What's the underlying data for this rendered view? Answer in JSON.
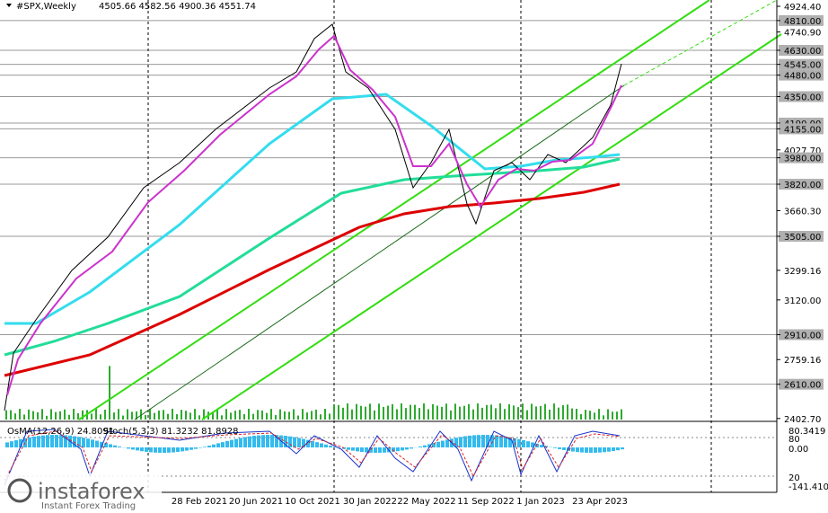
{
  "header": {
    "symbol": "#SPX,Weekly",
    "ohlc": "4505.66 4582.56 4900.36 4551.74"
  },
  "price_scale": [
    {
      "label": "4924.40",
      "level": false
    },
    {
      "label": "4810.00",
      "level": true
    },
    {
      "label": "4740.90",
      "level": false
    },
    {
      "label": "4630.00",
      "level": true
    },
    {
      "label": "4545.00",
      "level": true
    },
    {
      "label": "4480.00",
      "level": true
    },
    {
      "label": "4350.00",
      "level": true
    },
    {
      "label": "4190.00",
      "level": true
    },
    {
      "label": "4155.00",
      "level": true
    },
    {
      "label": "4027.70",
      "level": false
    },
    {
      "label": "3980.00",
      "level": true
    },
    {
      "label": "3820.00",
      "level": true
    },
    {
      "label": "3660.30",
      "level": false
    },
    {
      "label": "3505.00",
      "level": true
    },
    {
      "label": "3299.16",
      "level": false
    },
    {
      "label": "3120.00",
      "level": false
    },
    {
      "label": "2910.00",
      "level": true
    },
    {
      "label": "2759.16",
      "level": false
    },
    {
      "label": "2610.00",
      "level": true
    },
    {
      "label": "2402.70",
      "level": false
    }
  ],
  "indicator": {
    "osma": "OsMA(12,26,9) 24.8091",
    "stoch": "Stoch(5,3,3) 81.3232 81.8928"
  },
  "indicator_scale": [
    "80.3419",
    "80",
    "0.00",
    "20",
    "-141.4101"
  ],
  "time_scale": [
    "28 Feb 2021",
    "20 Jun 2021",
    "10 Oct 2021",
    "30 Jan 2022",
    "22 May 2022",
    "11 Sep 2022",
    "1 Jan 2023",
    "23 Apr 2023"
  ],
  "watermark": {
    "brand": "instaforex",
    "tagline": "Instant Forex Trading"
  }
}
